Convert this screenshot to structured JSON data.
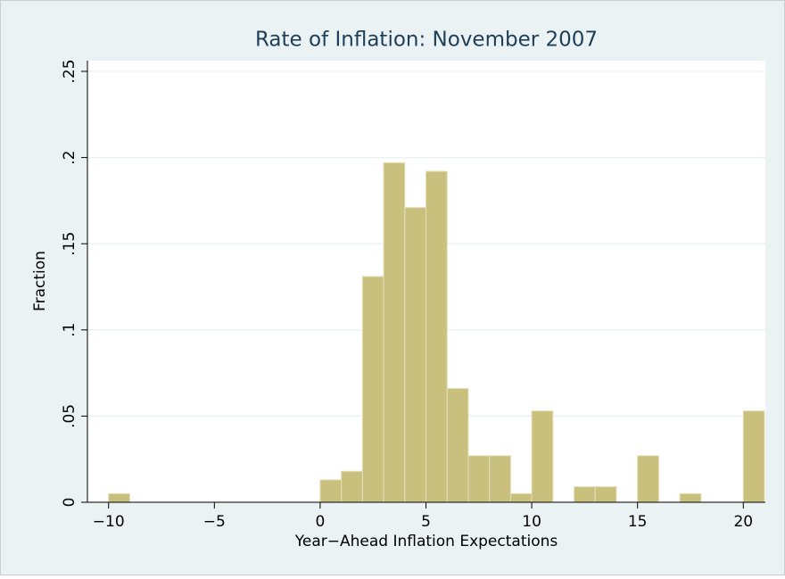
{
  "chart_data": {
    "type": "histogram",
    "title": "Rate of Inflation: November 2007",
    "xlabel": "Year−Ahead Inflation Expectations",
    "ylabel": "Fraction",
    "bins": [
      -10,
      -9,
      -8,
      -7,
      -6,
      -5,
      -4,
      -3,
      -2,
      -1,
      0,
      1,
      2,
      3,
      4,
      5,
      6,
      7,
      8,
      9,
      10,
      11,
      12,
      13,
      14,
      15,
      16,
      17,
      18,
      19,
      20,
      21
    ],
    "values": [
      0.005,
      0,
      0,
      0,
      0,
      0,
      0,
      0,
      0,
      0,
      0.013,
      0.018,
      0.131,
      0.197,
      0.171,
      0.192,
      0.066,
      0.027,
      0.027,
      0.005,
      0.053,
      0,
      0.009,
      0.009,
      0,
      0.027,
      0,
      0.005,
      0,
      0,
      0.053
    ],
    "color": "#c9c07e",
    "xlim": [
      -11,
      21
    ],
    "ylim": [
      0,
      0.25
    ],
    "xticks": [
      {
        "value": -10,
        "label": "−10"
      },
      {
        "value": -5,
        "label": "−5"
      },
      0,
      5,
      10,
      15,
      20
    ],
    "yticks": [
      0,
      {
        "value": 0.05,
        "label": ".05"
      },
      {
        "value": 0.1,
        "label": ".1"
      },
      {
        "value": 0.15,
        "label": ".15"
      },
      {
        "value": 0.2,
        "label": ".2"
      },
      {
        "value": 0.25,
        "label": ".25"
      }
    ],
    "grid": true
  }
}
